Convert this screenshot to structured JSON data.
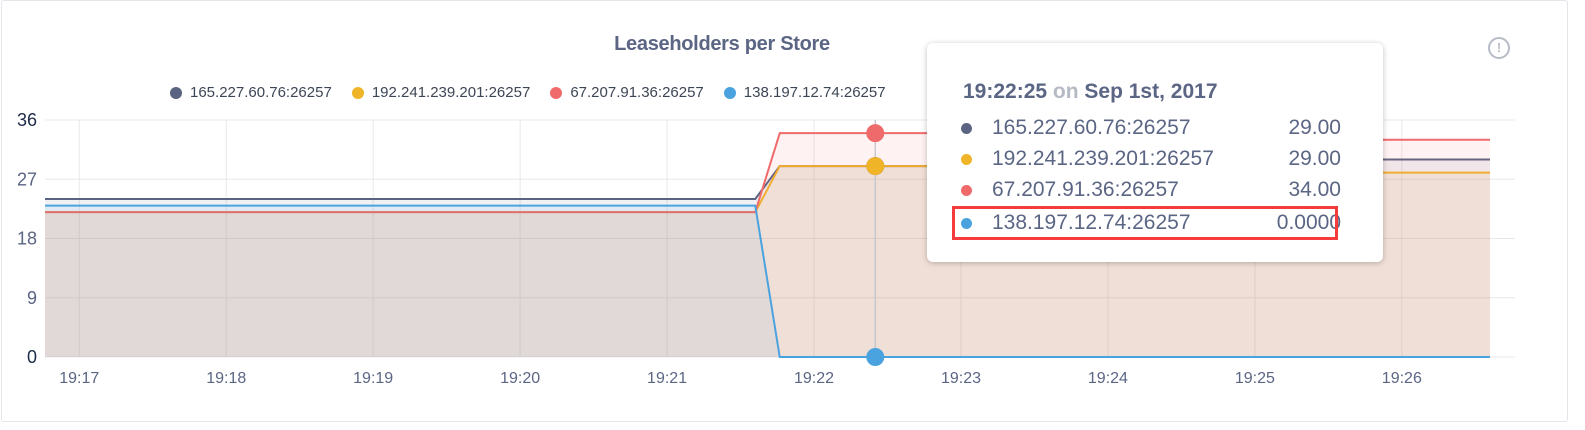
{
  "chart_data": {
    "type": "area",
    "title": "Leaseholders per Store",
    "xlabel": "",
    "ylabel": "",
    "ylim": [
      0,
      36
    ],
    "y_ticks": [
      "0",
      "9",
      "18",
      "27",
      "36"
    ],
    "x_ticks": [
      "19:17",
      "19:18",
      "19:19",
      "19:20",
      "19:21",
      "19:22",
      "19:23",
      "19:24",
      "19:25",
      "19:26"
    ],
    "x_range": [
      "19:16:46",
      "19:26:36"
    ],
    "grid": true,
    "legend_position": "top",
    "x": [
      "19:16:46",
      "19:21:36",
      "19:21:46",
      "19:24:00",
      "19:24:10",
      "19:26:36"
    ],
    "series": [
      {
        "name": "165.227.60.76:26257",
        "color": "#5a6482",
        "values": [
          24,
          24,
          29,
          29,
          30,
          30
        ]
      },
      {
        "name": "192.241.239.201:26257",
        "color": "#f0b429",
        "values": [
          22,
          22,
          29,
          29,
          28,
          28
        ]
      },
      {
        "name": "67.207.91.36:26257",
        "color": "#ef6b6b",
        "values": [
          22,
          22,
          34,
          34,
          33,
          33
        ]
      },
      {
        "name": "138.197.12.74:26257",
        "color": "#4aa3df",
        "values": [
          23,
          23,
          0,
          0,
          0,
          0
        ]
      }
    ]
  },
  "tooltip": {
    "time": "19:22:25",
    "on": "on",
    "date": "Sep 1st, 2017",
    "rows": [
      {
        "name": "165.227.60.76:26257",
        "value": "29.00"
      },
      {
        "name": "192.241.239.201:26257",
        "value": "29.00"
      },
      {
        "name": "67.207.91.36:26257",
        "value": "34.00"
      },
      {
        "name": "138.197.12.74:26257",
        "value": "0.0000"
      }
    ],
    "highlighted_row": 3
  },
  "info_icon": "exclamation-circle-icon"
}
